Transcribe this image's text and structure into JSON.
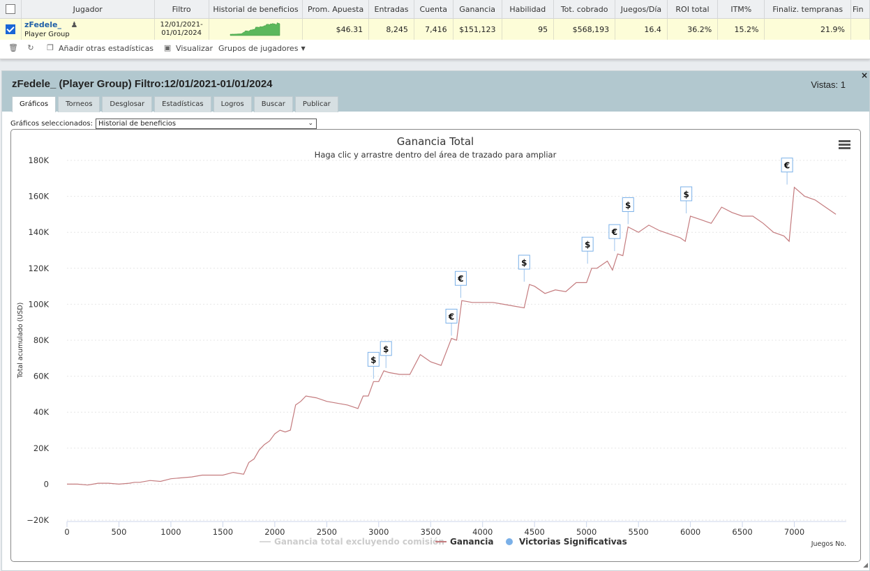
{
  "stats_table": {
    "columns": [
      "Jugador",
      "Filtro",
      "Historial de beneficios",
      "Prom. Apuesta",
      "Entradas",
      "Cuenta",
      "Ganancia",
      "Habilidad",
      "Tot. cobrado",
      "Juegos/Día",
      "ROI total",
      "ITM%",
      "Finaliz. tempranas",
      "Fin"
    ],
    "row": {
      "player_name": "zFedele_",
      "player_group": "Player Group",
      "filter_line1": "12/01/2021-",
      "filter_line2": "01/01/2024",
      "avg_stake": "$46.31",
      "entries": "8,245",
      "count": "7,416",
      "profit": "$151,123",
      "ability": "95",
      "total_won": "$568,193",
      "games_per_day": "16.4",
      "roi_total": "36.2%",
      "itm": "15.2%",
      "early_finishes": "21.9%"
    }
  },
  "toolbar": {
    "add_stats": "Añadir otras estadísticas",
    "visualize": "Visualizar",
    "player_groups": "Grupos de jugadores"
  },
  "panel": {
    "title": "zFedele_ (Player Group) Filtro:12/01/2021-01/01/2024",
    "views": "Vistas: 1",
    "close": "×",
    "tabs": [
      "Gráficos",
      "Torneos",
      "Desglosar",
      "Estadísticas",
      "Logros",
      "Buscar",
      "Publicar"
    ],
    "selected_label": "Gráficos seleccionados:",
    "selected_value": "Historial de beneficios"
  },
  "chart_data": {
    "type": "line",
    "title": "Ganancia Total",
    "subtitle": "Haga clic y arrastre dentro del área de trazado para ampliar",
    "ylabel": "Total acumulado (USD)",
    "xlabel": "Juegos No.",
    "xlim": [
      0,
      7500
    ],
    "ylim": [
      -20000,
      180000
    ],
    "x_ticks": [
      0,
      500,
      1000,
      1500,
      2000,
      2500,
      3000,
      3500,
      4000,
      4500,
      5000,
      5500,
      6000,
      6500,
      7000
    ],
    "y_ticks": [
      -20000,
      0,
      20000,
      40000,
      60000,
      80000,
      100000,
      120000,
      140000,
      160000,
      180000
    ],
    "y_tick_labels": [
      "−20K",
      "0",
      "20K",
      "40K",
      "60K",
      "80K",
      "100K",
      "120K",
      "140K",
      "160K",
      "180K"
    ],
    "grid": true,
    "legend_position": "bottom",
    "legend": [
      "Ganancia total excluyendo comisión",
      "Ganancia",
      "Victorias Significativas"
    ],
    "series": [
      {
        "name": "Ganancia",
        "color": "#c47b7e",
        "x": [
          0,
          100,
          200,
          300,
          400,
          500,
          600,
          650,
          700,
          800,
          900,
          1000,
          1100,
          1200,
          1300,
          1400,
          1500,
          1600,
          1700,
          1750,
          1800,
          1850,
          1900,
          1950,
          2000,
          2050,
          2100,
          2150,
          2200,
          2250,
          2300,
          2400,
          2500,
          2600,
          2700,
          2800,
          2850,
          2900,
          2950,
          3000,
          3050,
          3100,
          3200,
          3300,
          3400,
          3500,
          3600,
          3700,
          3750,
          3800,
          3900,
          4000,
          4100,
          4200,
          4300,
          4400,
          4450,
          4500,
          4600,
          4700,
          4800,
          4900,
          5000,
          5050,
          5100,
          5200,
          5250,
          5300,
          5350,
          5400,
          5500,
          5600,
          5700,
          5800,
          5900,
          5950,
          6000,
          6100,
          6200,
          6300,
          6400,
          6500,
          6600,
          6700,
          6800,
          6900,
          6950,
          7000,
          7100,
          7200,
          7300,
          7400
        ],
        "values": [
          0,
          0,
          -500,
          500,
          500,
          0,
          500,
          1000,
          1000,
          2000,
          1500,
          3000,
          3500,
          4000,
          5000,
          5000,
          5000,
          6500,
          5500,
          12000,
          14000,
          19000,
          22000,
          24000,
          28000,
          30000,
          29000,
          30000,
          44000,
          46000,
          49000,
          48000,
          46000,
          45000,
          44000,
          42000,
          49000,
          49000,
          57000,
          57000,
          63000,
          62000,
          61000,
          61000,
          72000,
          68000,
          66000,
          81000,
          80000,
          102000,
          101000,
          101000,
          101000,
          100000,
          99000,
          98000,
          111000,
          110000,
          106000,
          108000,
          107000,
          112000,
          112000,
          120000,
          120000,
          124000,
          119000,
          128000,
          127000,
          143000,
          140000,
          144000,
          141000,
          139000,
          137000,
          135000,
          149000,
          147000,
          145000,
          154000,
          151000,
          149000,
          149000,
          145000,
          140000,
          138000,
          135000,
          165000,
          160000,
          158000,
          154000,
          150000
        ]
      }
    ],
    "significant_wins": [
      {
        "x": 2950,
        "y": 57000,
        "symbol": "$"
      },
      {
        "x": 3070,
        "y": 63000,
        "symbol": "$"
      },
      {
        "x": 3700,
        "y": 81000,
        "symbol": "€"
      },
      {
        "x": 3790,
        "y": 102000,
        "symbol": "€"
      },
      {
        "x": 4400,
        "y": 111000,
        "symbol": "$"
      },
      {
        "x": 5010,
        "y": 121000,
        "symbol": "$"
      },
      {
        "x": 5270,
        "y": 128000,
        "symbol": "€"
      },
      {
        "x": 5400,
        "y": 143000,
        "symbol": "$"
      },
      {
        "x": 5960,
        "y": 149000,
        "symbol": "$"
      },
      {
        "x": 6930,
        "y": 165000,
        "symbol": "€"
      }
    ]
  },
  "colors": {
    "header_bg": "#b2c8cf",
    "row_highlight": "#fdfdd8",
    "line": "#c47b7e",
    "marker": "#7ab0e8"
  }
}
